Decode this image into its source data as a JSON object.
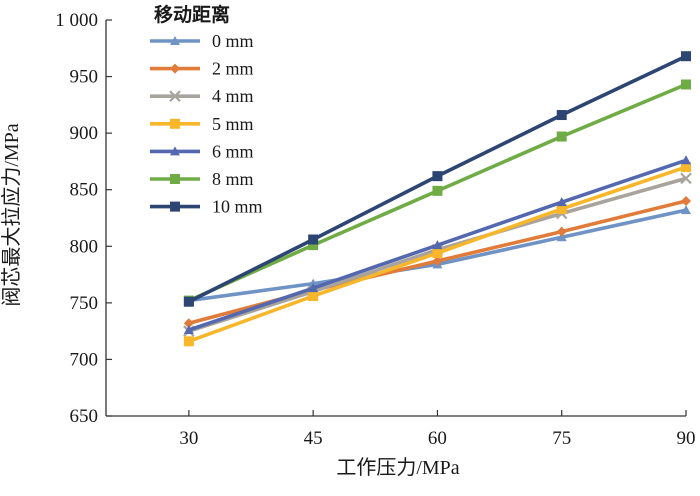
{
  "chart_data": {
    "type": "line",
    "title": "",
    "xlabel": "工作压力/MPa",
    "ylabel": "阀芯最大拉应力/MPa",
    "x": [
      30,
      45,
      60,
      75,
      90
    ],
    "x_tick_labels": [
      "30",
      "45",
      "60",
      "75",
      "90"
    ],
    "ylim": [
      650,
      1000
    ],
    "y_ticks": [
      650,
      700,
      750,
      800,
      850,
      900,
      950,
      1000
    ],
    "y_tick_labels": [
      "650",
      "700",
      "750",
      "800",
      "850",
      "900",
      "950",
      "1 000"
    ],
    "grid": false,
    "legend_position": "top-left",
    "legend_title": "移动距离",
    "series": [
      {
        "name": "0 mm",
        "color": "#6f93c4",
        "marker": "triangle",
        "values": [
          752,
          767,
          784,
          808,
          832
        ]
      },
      {
        "name": "2 mm",
        "color": "#e07b39",
        "marker": "diamond",
        "values": [
          732,
          761,
          787,
          813,
          840
        ]
      },
      {
        "name": "4 mm",
        "color": "#a8a39d",
        "marker": "cross",
        "values": [
          725,
          760,
          797,
          829,
          860
        ]
      },
      {
        "name": "5 mm",
        "color": "#f8b72a",
        "marker": "square",
        "values": [
          716,
          756,
          794,
          833,
          870
        ]
      },
      {
        "name": "6 mm",
        "color": "#5468b0",
        "marker": "triangle",
        "values": [
          726,
          763,
          801,
          839,
          876
        ]
      },
      {
        "name": "8 mm",
        "color": "#6fac46",
        "marker": "square",
        "values": [
          752,
          801,
          849,
          897,
          943
        ]
      },
      {
        "name": "10 mm",
        "color": "#2c4572",
        "marker": "square",
        "values": [
          751,
          806,
          862,
          916,
          968
        ]
      }
    ]
  }
}
